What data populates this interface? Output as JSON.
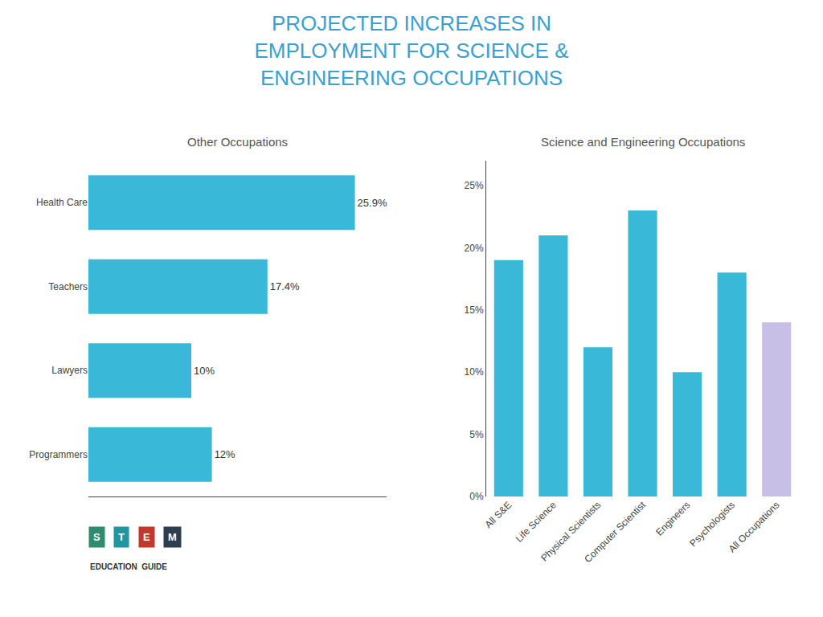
{
  "title": "PROJECTED INCREASES IN\nEMPLOYMENT FOR SCIENCE &\nENGINEERING OCCUPATIONS",
  "annotations": [
    {
      "text": "S",
      "color": "#2e8b6e"
    },
    {
      "text": "T",
      "color": "#2196a0"
    },
    {
      "text": "E",
      "color": "#c0392b"
    },
    {
      "text": "M",
      "color": "#2c3e50"
    },
    {
      "text": "EDUCATION  GUIDE"
    }
  ],
  "chart_data": [
    {
      "type": "bar",
      "orientation": "horizontal",
      "title": "Other Occupations",
      "categories": [
        "Health Care",
        "Teachers",
        "Lawyers",
        "Programmers"
      ],
      "values": [
        25.9,
        17.4,
        10.0,
        12.0
      ],
      "value_labels": [
        "25.9%",
        "17.4%",
        "10%",
        "12%"
      ],
      "data_labels": true,
      "color": "#3ab8d8",
      "xlim": [
        0,
        29
      ],
      "xticks": [],
      "tick_labels": "y",
      "grid": false
    },
    {
      "type": "bar",
      "title": "Science and Engineering Occupations",
      "categories": [
        "All S&E",
        "Life Science",
        "Physical Scientists",
        "Computer Scientist",
        "Engineers",
        "Psychologists",
        "All Occupations"
      ],
      "values": [
        19,
        21,
        12,
        23,
        10,
        18,
        14
      ],
      "colors": [
        "#3ab8d8",
        "#3ab8d8",
        "#3ab8d8",
        "#3ab8d8",
        "#3ab8d8",
        "#3ab8d8",
        "#c8bfe7"
      ],
      "ylim": [
        0,
        27
      ],
      "yticks": [
        {
          "value": 0,
          "label": "0%"
        },
        {
          "value": 5,
          "label": "5%"
        },
        {
          "value": 10,
          "label": "10%"
        },
        {
          "value": 15,
          "label": "15%"
        },
        {
          "value": 20,
          "label": "20%"
        },
        {
          "value": 25,
          "label": "25%"
        }
      ],
      "grid": false
    }
  ]
}
